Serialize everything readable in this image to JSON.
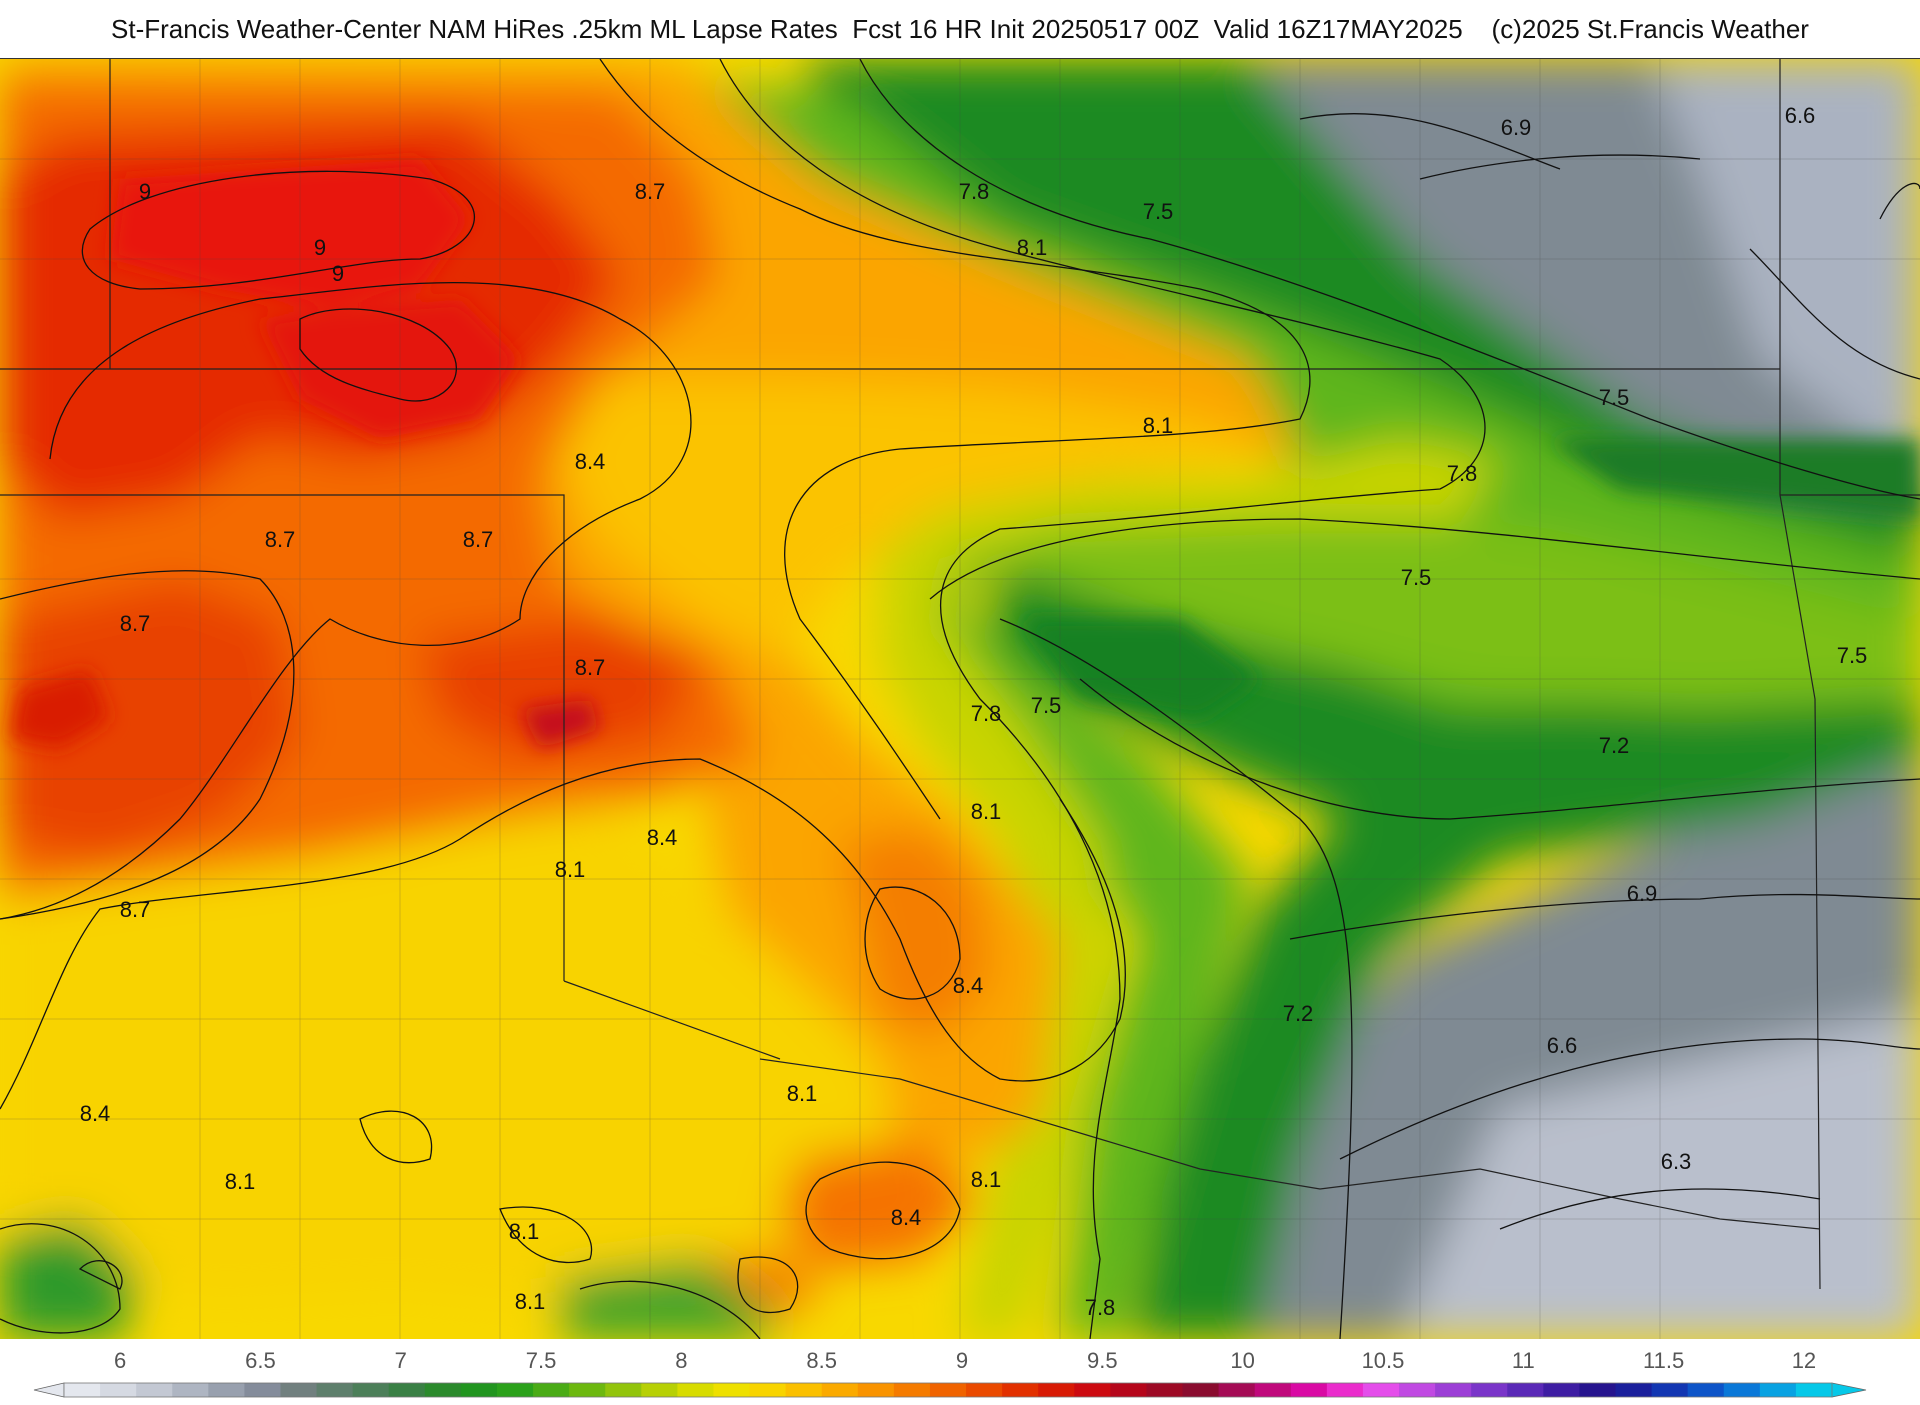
{
  "title": "St-Francis Weather-Center NAM HiRes .25km ML Lapse Rates  Fcst 16 HR Init 20250517 00Z  Valid 16Z17MAY2025    (c)2025 St.Francis Weather",
  "contour_labels": [
    {
      "id": "9a",
      "text": "9"
    },
    {
      "id": "9b",
      "text": "9"
    },
    {
      "id": "9c",
      "text": "9"
    },
    {
      "id": "87a",
      "text": "8.7"
    },
    {
      "id": "87b",
      "text": "8.7"
    },
    {
      "id": "87c",
      "text": "8.7"
    },
    {
      "id": "87d",
      "text": "8.7"
    },
    {
      "id": "87e",
      "text": "8.7"
    },
    {
      "id": "87f",
      "text": "8.7"
    },
    {
      "id": "84a",
      "text": "8.4"
    },
    {
      "id": "84b",
      "text": "8.4"
    },
    {
      "id": "84c",
      "text": "8.4"
    },
    {
      "id": "84d",
      "text": "8.4"
    },
    {
      "id": "84e",
      "text": "8.4"
    },
    {
      "id": "81a",
      "text": "8.1"
    },
    {
      "id": "81b",
      "text": "8.1"
    },
    {
      "id": "81c",
      "text": "8.1"
    },
    {
      "id": "81d",
      "text": "8.1"
    },
    {
      "id": "81e",
      "text": "8.1"
    },
    {
      "id": "81f",
      "text": "8.1"
    },
    {
      "id": "81g",
      "text": "8.1"
    },
    {
      "id": "81h",
      "text": "8.1"
    },
    {
      "id": "81i",
      "text": "8.1"
    },
    {
      "id": "78a",
      "text": "7.8"
    },
    {
      "id": "78b",
      "text": "7.8"
    },
    {
      "id": "78c",
      "text": "7.8"
    },
    {
      "id": "78d",
      "text": "7.8"
    },
    {
      "id": "75a",
      "text": "7.5"
    },
    {
      "id": "75b",
      "text": "7.5"
    },
    {
      "id": "75c",
      "text": "7.5"
    },
    {
      "id": "75d",
      "text": "7.5"
    },
    {
      "id": "75e",
      "text": "7.5"
    },
    {
      "id": "72a",
      "text": "7.2"
    },
    {
      "id": "72b",
      "text": "7.2"
    },
    {
      "id": "69a",
      "text": "6.9"
    },
    {
      "id": "69b",
      "text": "6.9"
    },
    {
      "id": "66a",
      "text": "6.6"
    },
    {
      "id": "66b",
      "text": "6.6"
    },
    {
      "id": "63a",
      "text": "6.3"
    }
  ],
  "colorbar": {
    "ticks": [
      "6",
      "6.5",
      "7",
      "7.5",
      "8",
      "8.5",
      "9",
      "9.5",
      "10",
      "10.5",
      "11",
      "11.5",
      "12"
    ],
    "min": 5.8,
    "max": 12.1,
    "colors": [
      "#e4e7ee",
      "#d5d9e2",
      "#c3c8d3",
      "#aeb5c2",
      "#98a0ae",
      "#848c9b",
      "#71807f",
      "#5e7f6c",
      "#4c7f59",
      "#3a8045",
      "#2b8a2c",
      "#21951f",
      "#2ba11b",
      "#4aab16",
      "#6db80f",
      "#92c40b",
      "#b7d005",
      "#d8dc00",
      "#eee000",
      "#f8d400",
      "#fbc000",
      "#fbaa00",
      "#f99300",
      "#f57b00",
      "#f06300",
      "#ea4a00",
      "#e23000",
      "#d81a05",
      "#cc0a10",
      "#b5061b",
      "#9d0a25",
      "#8a0c2f",
      "#a40b55",
      "#c0097c",
      "#d90aa4",
      "#ea2ccc",
      "#e44dea",
      "#c049e2",
      "#9c3fd6",
      "#7a35c9",
      "#5a29b7",
      "#3e1da3",
      "#26148e",
      "#1a1f9c",
      "#1236b2",
      "#0d54c8",
      "#0a78d8",
      "#08a2e2",
      "#06c8e8"
    ]
  }
}
